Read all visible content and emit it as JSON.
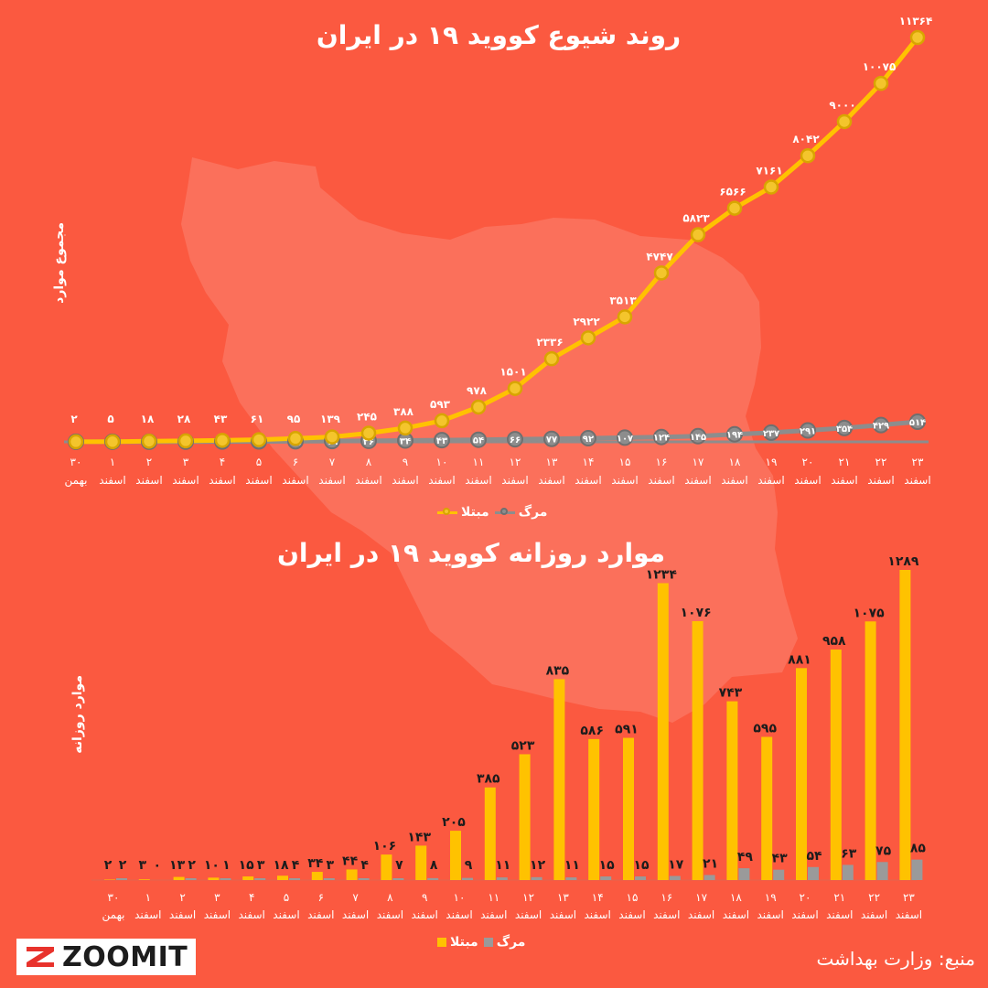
{
  "title_cumulative": "روند شیوع کووید ۱۹ در ایران",
  "title_daily": "موارد روزانه کووید ۱۹ در ایران",
  "ylabel_cumulative": "مجموع موارد",
  "ylabel_daily": "موارد روزانه",
  "legend": {
    "infected": "مبتلا",
    "deaths": "مرگ"
  },
  "source": "منبع: وزارت بهداشت",
  "brand": "ZOOMIT",
  "colors": {
    "background": "#fb5940",
    "infected": "#ffc200",
    "deaths": "#9a9a9a"
  },
  "map_icon": "iran-map-silhouette",
  "chart_data": [
    {
      "type": "line",
      "title": "روند شیوع کووید ۱۹ در ایران",
      "ylabel": "مجموع موارد",
      "x_days": [
        "۳۰",
        "۱",
        "۲",
        "۳",
        "۴",
        "۵",
        "۶",
        "۷",
        "۸",
        "۹",
        "۱۰",
        "۱۱",
        "۱۲",
        "۱۳",
        "۱۴",
        "۱۵",
        "۱۶",
        "۱۷",
        "۱۸",
        "۱۹",
        "۲۰",
        "۲۱",
        "۲۲",
        "۲۳"
      ],
      "x_months": [
        "بهمن",
        "اسفند",
        "اسفند",
        "اسفند",
        "اسفند",
        "اسفند",
        "اسفند",
        "اسفند",
        "اسفند",
        "اسفند",
        "اسفند",
        "اسفند",
        "اسفند",
        "اسفند",
        "اسفند",
        "اسفند",
        "اسفند",
        "اسفند",
        "اسفند",
        "اسفند",
        "اسفند",
        "اسفند",
        "اسفند",
        "اسفند"
      ],
      "series": [
        {
          "name": "مبتلا",
          "values": [
            2,
            5,
            18,
            28,
            43,
            61,
            95,
            139,
            245,
            388,
            593,
            978,
            1501,
            2336,
            2922,
            3513,
            4747,
            5823,
            6566,
            7161,
            8042,
            9000,
            10075,
            11364
          ],
          "labels": [
            "۲",
            "۵",
            "۱۸",
            "۲۸",
            "۴۳",
            "۶۱",
            "۹۵",
            "۱۳۹",
            "۲۴۵",
            "۳۸۸",
            "۵۹۳",
            "۹۷۸",
            "۱۵۰۱",
            "۲۳۳۶",
            "۲۹۲۲",
            "۳۵۱۳",
            "۴۷۴۷",
            "۵۸۲۳",
            "۶۵۶۶",
            "۷۱۶۱",
            "۸۰۴۲",
            "۹۰۰۰",
            "۱۰۰۷۵",
            "۱۱۳۶۴"
          ]
        },
        {
          "name": "مرگ",
          "values": [
            2,
            2,
            4,
            5,
            8,
            12,
            15,
            19,
            26,
            34,
            43,
            54,
            66,
            77,
            92,
            107,
            124,
            145,
            194,
            237,
            291,
            354,
            429,
            514
          ],
          "labels": [
            "۲",
            "۲",
            "۴",
            "۵",
            "۸",
            "۱۲",
            "۱۵",
            "۱۹",
            "۲۶",
            "۳۴",
            "۴۳",
            "۵۴",
            "۶۶",
            "۷۷",
            "۹۲",
            "۱۰۷",
            "۱۲۴",
            "۱۴۵",
            "۱۹۴",
            "۲۳۷",
            "۲۹۱",
            "۳۵۴",
            "۴۲۹",
            "۵۱۴"
          ]
        }
      ],
      "ylim": [
        0,
        11364
      ]
    },
    {
      "type": "bar",
      "title": "موارد روزانه کووید ۱۹ در ایران",
      "ylabel": "موارد روزانه",
      "x_days": [
        "۳۰",
        "۱",
        "۲",
        "۳",
        "۴",
        "۵",
        "۶",
        "۷",
        "۸",
        "۹",
        "۱۰",
        "۱۱",
        "۱۲",
        "۱۳",
        "۱۴",
        "۱۵",
        "۱۶",
        "۱۷",
        "۱۸",
        "۱۹",
        "۲۰",
        "۲۱",
        "۲۲",
        "۲۳"
      ],
      "x_months": [
        "بهمن",
        "اسفند",
        "اسفند",
        "اسفند",
        "اسفند",
        "اسفند",
        "اسفند",
        "اسفند",
        "اسفند",
        "اسفند",
        "اسفند",
        "اسفند",
        "اسفند",
        "اسفند",
        "اسفند",
        "اسفند",
        "اسفند",
        "اسفند",
        "اسفند",
        "اسفند",
        "اسفند",
        "اسفند",
        "اسفند",
        "اسفند"
      ],
      "series": [
        {
          "name": "مبتلا",
          "values": [
            2,
            3,
            13,
            10,
            15,
            18,
            34,
            44,
            106,
            143,
            205,
            385,
            523,
            835,
            586,
            591,
            1234,
            1076,
            743,
            595,
            881,
            958,
            1075,
            1289
          ],
          "labels": [
            "۲",
            "۳",
            "۱۳",
            "۱۰",
            "۱۵",
            "۱۸",
            "۳۴",
            "۴۴",
            "۱۰۶",
            "۱۴۳",
            "۲۰۵",
            "۳۸۵",
            "۵۲۳",
            "۸۳۵",
            "۵۸۶",
            "۵۹۱",
            "۱۲۳۴",
            "۱۰۷۶",
            "۷۴۳",
            "۵۹۵",
            "۸۸۱",
            "۹۵۸",
            "۱۰۷۵",
            "۱۲۸۹"
          ]
        },
        {
          "name": "مرگ",
          "values": [
            2,
            0,
            2,
            1,
            3,
            4,
            3,
            4,
            7,
            8,
            9,
            11,
            12,
            11,
            15,
            15,
            17,
            21,
            49,
            43,
            54,
            63,
            75,
            85
          ],
          "labels": [
            "۲",
            "۰",
            "۲",
            "۱",
            "۳",
            "۴",
            "۳",
            "۴",
            "۷",
            "۸",
            "۹",
            "۱۱",
            "۱۲",
            "۱۱",
            "۱۵",
            "۱۵",
            "۱۷",
            "۲۱",
            "۴۹",
            "۴۳",
            "۵۴",
            "۶۳",
            "۷۵",
            "۸۵"
          ]
        }
      ],
      "ylim": [
        0,
        1289
      ]
    }
  ]
}
